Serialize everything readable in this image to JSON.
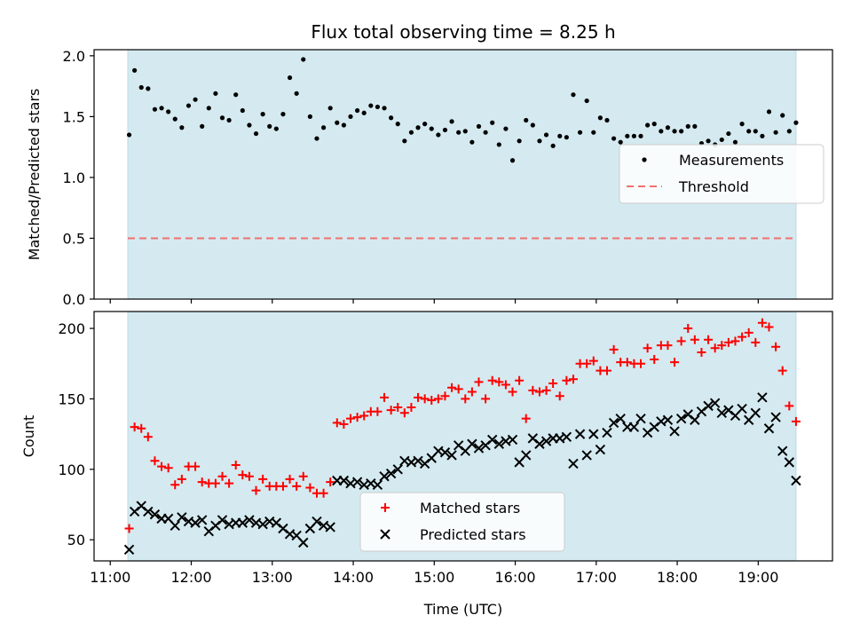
{
  "chart_data": [
    {
      "type": "scatter",
      "title": "Flux total observing time = 8.25 h",
      "xlabel": "",
      "ylabel": "Matched/Predicted stars",
      "xlim": [
        "10:48",
        "19:55"
      ],
      "ylim": [
        0,
        2.05
      ],
      "yticks": [
        0.0,
        0.5,
        1.0,
        1.5,
        2.0
      ],
      "ytick_labels": [
        "0.0",
        "0.5",
        "1.0",
        "1.5",
        "2.0"
      ],
      "xticks": [
        "11:00",
        "12:00",
        "13:00",
        "14:00",
        "15:00",
        "16:00",
        "17:00",
        "18:00",
        "19:00"
      ],
      "grid": false,
      "legend_position": "center-right",
      "observing_window": {
        "start": "11:13",
        "end": "19:28",
        "color": "#d4eaf0"
      },
      "series": [
        {
          "name": "Measurements",
          "marker": "dot",
          "color": "#000000",
          "x": [
            "11:14",
            "11:18",
            "11:23",
            "11:28",
            "11:33",
            "11:38",
            "11:43",
            "11:48",
            "11:53",
            "11:58",
            "12:03",
            "12:08",
            "12:13",
            "12:18",
            "12:23",
            "12:28",
            "12:33",
            "12:38",
            "12:43",
            "12:48",
            "12:53",
            "12:58",
            "13:03",
            "13:08",
            "13:13",
            "13:18",
            "13:23",
            "13:28",
            "13:33",
            "13:38",
            "13:43",
            "13:48",
            "13:53",
            "13:58",
            "14:03",
            "14:08",
            "14:13",
            "14:18",
            "14:23",
            "14:28",
            "14:33",
            "14:38",
            "14:43",
            "14:48",
            "14:53",
            "14:58",
            "15:03",
            "15:08",
            "15:13",
            "15:18",
            "15:23",
            "15:28",
            "15:33",
            "15:38",
            "15:43",
            "15:48",
            "15:53",
            "15:58",
            "16:03",
            "16:08",
            "16:13",
            "16:18",
            "16:23",
            "16:28",
            "16:33",
            "16:38",
            "16:43",
            "16:48",
            "16:53",
            "16:58",
            "17:03",
            "17:08",
            "17:13",
            "17:18",
            "17:23",
            "17:28",
            "17:33",
            "17:38",
            "17:43",
            "17:48",
            "17:53",
            "17:58",
            "18:03",
            "18:08",
            "18:13",
            "18:18",
            "18:23",
            "18:28",
            "18:33",
            "18:38",
            "18:43",
            "18:48",
            "18:53",
            "18:58",
            "19:03",
            "19:08",
            "19:13",
            "19:18",
            "19:23",
            "19:28"
          ],
          "y": [
            1.35,
            1.88,
            1.74,
            1.73,
            1.56,
            1.57,
            1.54,
            1.48,
            1.41,
            1.59,
            1.64,
            1.42,
            1.57,
            1.69,
            1.49,
            1.47,
            1.68,
            1.55,
            1.43,
            1.36,
            1.52,
            1.42,
            1.4,
            1.52,
            1.82,
            1.69,
            1.97,
            1.5,
            1.32,
            1.41,
            1.57,
            1.45,
            1.43,
            1.5,
            1.55,
            1.53,
            1.59,
            1.58,
            1.57,
            1.49,
            1.44,
            1.3,
            1.37,
            1.41,
            1.44,
            1.4,
            1.35,
            1.39,
            1.46,
            1.37,
            1.38,
            1.29,
            1.42,
            1.37,
            1.45,
            1.27,
            1.4,
            1.14,
            1.3,
            1.47,
            1.43,
            1.3,
            1.35,
            1.26,
            1.34,
            1.33,
            1.68,
            1.37,
            1.63,
            1.37,
            1.49,
            1.47,
            1.32,
            1.29,
            1.34,
            1.34,
            1.34,
            1.43,
            1.44,
            1.38,
            1.41,
            1.38,
            1.38,
            1.42,
            1.42,
            1.28,
            1.3,
            1.27,
            1.31,
            1.36,
            1.29,
            1.44,
            1.38,
            1.38,
            1.34,
            1.54,
            1.37,
            1.51,
            1.38,
            1.45
          ]
        },
        {
          "name": "Threshold",
          "type": "line",
          "style": "dashed",
          "color": "#f07070",
          "x": [
            "11:13",
            "19:28"
          ],
          "y": [
            0.5,
            0.5
          ]
        }
      ]
    },
    {
      "type": "scatter",
      "title": "",
      "xlabel": "Time (UTC)",
      "ylabel": "Count",
      "xlim": [
        "10:48",
        "19:55"
      ],
      "ylim": [
        35,
        212
      ],
      "yticks": [
        50,
        100,
        150,
        200
      ],
      "ytick_labels": [
        "50",
        "100",
        "150",
        "200"
      ],
      "xticks": [
        "11:00",
        "12:00",
        "13:00",
        "14:00",
        "15:00",
        "16:00",
        "17:00",
        "18:00",
        "19:00"
      ],
      "grid": false,
      "legend_position": "lower-center",
      "observing_window": {
        "start": "11:13",
        "end": "19:28",
        "color": "#d4eaf0"
      },
      "series": [
        {
          "name": "Matched stars",
          "marker": "plus",
          "color": "#ff0000",
          "x": [
            "11:14",
            "11:18",
            "11:23",
            "11:28",
            "11:33",
            "11:38",
            "11:43",
            "11:48",
            "11:53",
            "11:58",
            "12:03",
            "12:08",
            "12:13",
            "12:18",
            "12:23",
            "12:28",
            "12:33",
            "12:38",
            "12:43",
            "12:48",
            "12:53",
            "12:58",
            "13:03",
            "13:08",
            "13:13",
            "13:18",
            "13:23",
            "13:28",
            "13:33",
            "13:38",
            "13:43",
            "13:48",
            "13:53",
            "13:58",
            "14:03",
            "14:08",
            "14:13",
            "14:18",
            "14:23",
            "14:28",
            "14:33",
            "14:38",
            "14:43",
            "14:48",
            "14:53",
            "14:58",
            "15:03",
            "15:08",
            "15:13",
            "15:18",
            "15:23",
            "15:28",
            "15:33",
            "15:38",
            "15:43",
            "15:48",
            "15:53",
            "15:58",
            "16:03",
            "16:08",
            "16:13",
            "16:18",
            "16:23",
            "16:28",
            "16:33",
            "16:38",
            "16:43",
            "16:48",
            "16:53",
            "16:58",
            "17:03",
            "17:08",
            "17:13",
            "17:18",
            "17:23",
            "17:28",
            "17:33",
            "17:38",
            "17:43",
            "17:48",
            "17:53",
            "17:58",
            "18:03",
            "18:08",
            "18:13",
            "18:18",
            "18:23",
            "18:28",
            "18:33",
            "18:38",
            "18:43",
            "18:48",
            "18:53",
            "18:58",
            "19:03",
            "19:08",
            "19:13",
            "19:18",
            "19:23",
            "19:28"
          ],
          "y": [
            58,
            130,
            129,
            123,
            106,
            102,
            101,
            89,
            93,
            102,
            102,
            91,
            90,
            90,
            95,
            90,
            103,
            96,
            95,
            85,
            93,
            88,
            88,
            88,
            93,
            88,
            95,
            87,
            83,
            83,
            91,
            133,
            132,
            136,
            137,
            138,
            141,
            141,
            151,
            142,
            144,
            140,
            144,
            151,
            150,
            149,
            150,
            152,
            158,
            157,
            150,
            155,
            162,
            150,
            163,
            162,
            160,
            155,
            163,
            136,
            156,
            155,
            156,
            161,
            152,
            163,
            164,
            175,
            175,
            177,
            170,
            170,
            185,
            176,
            176,
            175,
            175,
            186,
            178,
            188,
            188,
            176,
            191,
            200,
            192,
            183,
            192,
            186,
            188,
            190,
            191,
            194,
            197,
            190,
            204,
            201,
            187,
            170,
            145,
            134
          ]
        },
        {
          "name": "Predicted stars",
          "marker": "x",
          "color": "#000000",
          "x": [
            "11:14",
            "11:18",
            "11:23",
            "11:28",
            "11:33",
            "11:38",
            "11:43",
            "11:48",
            "11:53",
            "11:58",
            "12:03",
            "12:08",
            "12:13",
            "12:18",
            "12:23",
            "12:28",
            "12:33",
            "12:38",
            "12:43",
            "12:48",
            "12:53",
            "12:58",
            "13:03",
            "13:08",
            "13:13",
            "13:18",
            "13:23",
            "13:28",
            "13:33",
            "13:38",
            "13:43",
            "13:48",
            "13:53",
            "13:58",
            "14:03",
            "14:08",
            "14:13",
            "14:18",
            "14:23",
            "14:28",
            "14:33",
            "14:38",
            "14:43",
            "14:48",
            "14:53",
            "14:58",
            "15:03",
            "15:08",
            "15:13",
            "15:18",
            "15:23",
            "15:28",
            "15:33",
            "15:38",
            "15:43",
            "15:48",
            "15:53",
            "15:58",
            "16:03",
            "16:08",
            "16:13",
            "16:18",
            "16:23",
            "16:28",
            "16:33",
            "16:38",
            "16:43",
            "16:48",
            "16:53",
            "16:58",
            "17:03",
            "17:08",
            "17:13",
            "17:18",
            "17:23",
            "17:28",
            "17:33",
            "17:38",
            "17:43",
            "17:48",
            "17:53",
            "17:58",
            "18:03",
            "18:08",
            "18:13",
            "18:18",
            "18:23",
            "18:28",
            "18:33",
            "18:38",
            "18:43",
            "18:48",
            "18:53",
            "18:58",
            "19:03",
            "19:08",
            "19:13",
            "19:18",
            "19:23",
            "19:28"
          ],
          "y": [
            43,
            70,
            74,
            70,
            68,
            65,
            65,
            60,
            66,
            63,
            62,
            64,
            56,
            60,
            64,
            61,
            62,
            62,
            64,
            62,
            61,
            63,
            62,
            58,
            54,
            53,
            48,
            58,
            63,
            60,
            59,
            92,
            92,
            90,
            91,
            89,
            90,
            89,
            95,
            97,
            100,
            106,
            105,
            106,
            104,
            108,
            113,
            112,
            110,
            117,
            113,
            118,
            115,
            117,
            121,
            118,
            120,
            121,
            105,
            110,
            122,
            118,
            120,
            122,
            122,
            123,
            104,
            125,
            110,
            125,
            114,
            126,
            133,
            136,
            130,
            130,
            136,
            126,
            130,
            134,
            135,
            127,
            136,
            139,
            135,
            141,
            145,
            147,
            140,
            142,
            138,
            143,
            135,
            140,
            151,
            129,
            137,
            113,
            105,
            92
          ]
        }
      ]
    }
  ]
}
